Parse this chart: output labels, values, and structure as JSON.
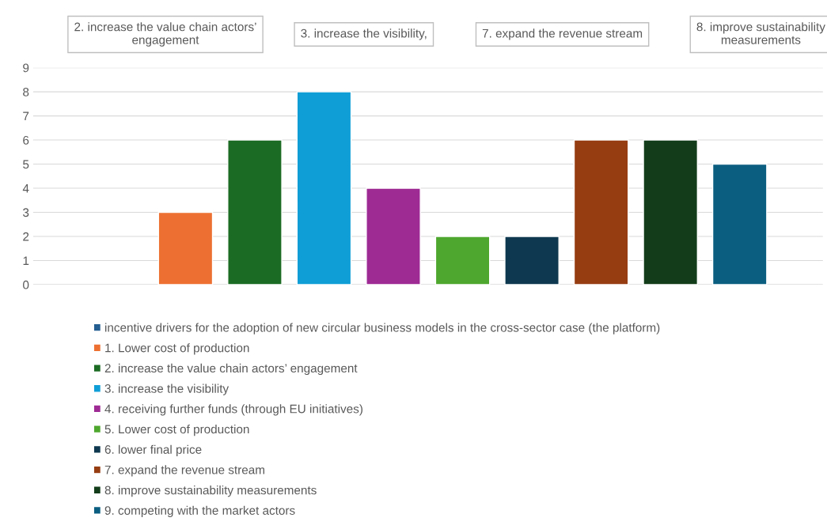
{
  "chart_data": {
    "type": "bar",
    "categories": [
      null
    ],
    "series": [
      {
        "name": "incentive drivers for the adoption of new circular business models in the cross-sector case (the platform)",
        "color": "#255e91",
        "values": [
          null
        ]
      },
      {
        "name": "1. Lower cost of production",
        "color": "#ed7032",
        "values": [
          3
        ]
      },
      {
        "name": "2. increase the value chain actors’ engagement",
        "color": "#1b6b24",
        "values": [
          6
        ]
      },
      {
        "name": "3. increase the visibility",
        "color": "#109ed6",
        "values": [
          8
        ]
      },
      {
        "name": "4. receiving further funds (through EU initiatives)",
        "color": "#9e2a94",
        "values": [
          4
        ]
      },
      {
        "name": "5. Lower cost of production",
        "color": "#4ea72e",
        "values": [
          2
        ]
      },
      {
        "name": "6. lower final price",
        "color": "#0e384f",
        "values": [
          2
        ]
      },
      {
        "name": "7. expand the revenue stream",
        "color": "#963d12",
        "values": [
          6
        ]
      },
      {
        "name": "8. improve sustainability measurements",
        "color": "#133d1a",
        "values": [
          6
        ]
      },
      {
        "name": "9. competing with the market actors",
        "color": "#0b5e80",
        "values": [
          5
        ]
      }
    ],
    "ylim": [
      0,
      9
    ],
    "yticks": [
      0,
      1,
      2,
      3,
      4,
      5,
      6,
      7,
      8,
      9
    ],
    "grid": "y",
    "legend": "bottom",
    "annotations": [
      "2. increase the value chain actors’ engagement",
      "3. increase the visibility,",
      "7. expand the revenue stream",
      "8. improve sustainability measurements"
    ]
  }
}
